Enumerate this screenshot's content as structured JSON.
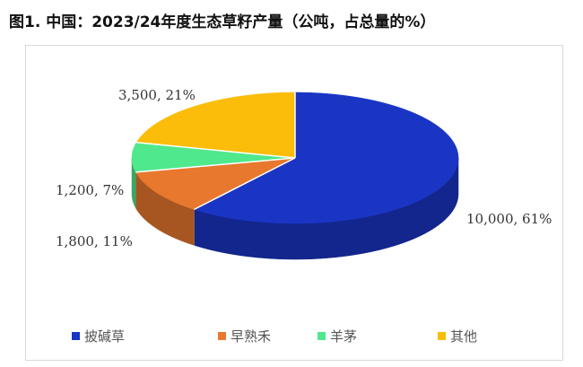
{
  "title": "图1. 中国：2023/24年度生态草籽产量（公吨，占总量的%）",
  "chart_data": {
    "type": "pie",
    "three_d": true,
    "title": "图1. 中国：2023/24年度生态草籽产量（公吨，占总量的%）",
    "categories": [
      "披碱草",
      "早熟禾",
      "羊茅",
      "其他"
    ],
    "values": [
      10000,
      1800,
      1200,
      3500
    ],
    "percents": [
      61,
      11,
      7,
      21
    ],
    "data_labels": [
      "10,000, 61%",
      "1,800, 11%",
      "1,200, 7%",
      "3,500, 21%"
    ],
    "colors": [
      "#1a35c4",
      "#e8782e",
      "#50e88c",
      "#fbbd0a"
    ],
    "legend_position": "bottom"
  }
}
